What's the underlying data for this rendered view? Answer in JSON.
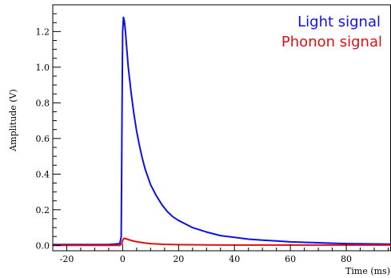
{
  "chart_data": {
    "type": "line",
    "title": "",
    "xlabel": "Time (ms)",
    "ylabel": "Amplitude (V)",
    "xlim": [
      -25,
      96
    ],
    "ylim": [
      -0.03,
      1.35
    ],
    "x_ticks": [
      -20,
      0,
      20,
      40,
      60,
      80
    ],
    "x_tick_labels": [
      "-20",
      "0",
      "20",
      "40",
      "60",
      "80"
    ],
    "y_ticks": [
      0.0,
      0.2,
      0.4,
      0.6,
      0.8,
      1.0,
      1.2
    ],
    "y_tick_labels": [
      "0.0",
      "0.2",
      "0.4",
      "0.6",
      "0.8",
      "1.0",
      "1.2"
    ],
    "grid": false,
    "legend_position": "top-right",
    "series": [
      {
        "name": "Light signal",
        "color": "#1010e6",
        "x": [
          -25,
          -20,
          -15,
          -10,
          -5,
          -1,
          -0.5,
          -0.2,
          0,
          0.3,
          0.6,
          1,
          1.5,
          2,
          3,
          4,
          5,
          6,
          7,
          8,
          10,
          12,
          14,
          16,
          18,
          20,
          25,
          30,
          35,
          40,
          45,
          50,
          55,
          60,
          70,
          80,
          90,
          96
        ],
        "y": [
          0.005,
          0.005,
          0.005,
          0.005,
          0.005,
          0.01,
          0.05,
          0.8,
          1.2,
          1.28,
          1.26,
          1.2,
          1.1,
          1.0,
          0.86,
          0.74,
          0.64,
          0.56,
          0.49,
          0.43,
          0.34,
          0.28,
          0.23,
          0.19,
          0.16,
          0.14,
          0.1,
          0.075,
          0.055,
          0.045,
          0.035,
          0.03,
          0.025,
          0.02,
          0.015,
          0.01,
          0.008,
          0.007
        ]
      },
      {
        "name": "Phonon signal",
        "color": "#e01010",
        "x": [
          -25,
          -1,
          -0.3,
          0,
          0.5,
          1,
          2,
          3,
          4,
          6,
          8,
          10,
          15,
          20,
          30,
          40,
          60,
          80,
          96
        ],
        "y": [
          0.0,
          0.0,
          0.01,
          0.03,
          0.04,
          0.038,
          0.033,
          0.028,
          0.024,
          0.018,
          0.013,
          0.01,
          0.006,
          0.004,
          0.003,
          0.002,
          0.002,
          0.002,
          0.002
        ]
      }
    ]
  }
}
